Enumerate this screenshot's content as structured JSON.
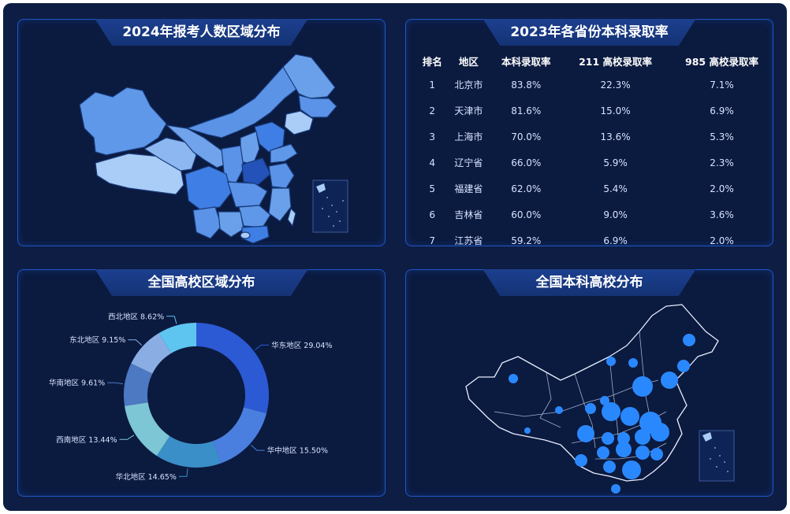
{
  "panels": {
    "map_top": {
      "title": "2024年报考人数区域分布"
    },
    "table": {
      "title": "2023年各省份本科录取率"
    },
    "donut": {
      "title": "全国高校区域分布"
    },
    "map_bottom": {
      "title": "全国本科高校分布"
    }
  },
  "table": {
    "headers": [
      "排名",
      "地区",
      "本科录取率",
      "211 高校录取率",
      "985 高校录取率"
    ],
    "rows": [
      {
        "rank": "1",
        "region": "北京市",
        "bachelor": "83.8%",
        "r211": "22.3%",
        "r985": "7.1%"
      },
      {
        "rank": "2",
        "region": "天津市",
        "bachelor": "81.6%",
        "r211": "15.0%",
        "r985": "6.9%"
      },
      {
        "rank": "3",
        "region": "上海市",
        "bachelor": "70.0%",
        "r211": "13.6%",
        "r985": "5.3%"
      },
      {
        "rank": "4",
        "region": "辽宁省",
        "bachelor": "66.0%",
        "r211": "5.9%",
        "r985": "2.3%"
      },
      {
        "rank": "5",
        "region": "福建省",
        "bachelor": "62.0%",
        "r211": "5.4%",
        "r985": "2.0%"
      },
      {
        "rank": "6",
        "region": "吉林省",
        "bachelor": "60.0%",
        "r211": "9.0%",
        "r985": "3.6%"
      },
      {
        "rank": "7",
        "region": "江苏省",
        "bachelor": "59.2%",
        "r211": "6.9%",
        "r985": "2.0%"
      }
    ]
  },
  "chart_data": {
    "type": "pie",
    "title": "全国高校区域分布",
    "slices": [
      {
        "name": "华东地区",
        "value": 29.04,
        "label": "华东地区 29.04%",
        "color": "#2c59d4"
      },
      {
        "name": "华中地区",
        "value": 15.5,
        "label": "华中地区 15.50%",
        "color": "#4a7fe0"
      },
      {
        "name": "华北地区",
        "value": 14.65,
        "label": "华北地区 14.65%",
        "color": "#3a8fc8"
      },
      {
        "name": "西南地区",
        "value": 13.44,
        "label": "西南地区 13.44%",
        "color": "#7cc6d6"
      },
      {
        "name": "华南地区",
        "value": 9.61,
        "label": "华南地区 9.61%",
        "color": "#4d78c2"
      },
      {
        "name": "东北地区",
        "value": 9.15,
        "label": "东北地区 9.15%",
        "color": "#8aaee4"
      },
      {
        "name": "西北地区",
        "value": 8.62,
        "label": "西北地区 8.62%",
        "color": "#5ec4f0"
      }
    ]
  },
  "colors": {
    "background": "#0d1d44",
    "panel": "#0b1a3f",
    "border": "#1f57c6",
    "map_fill": "#4f8ee8",
    "bubble": "#2a88ff"
  }
}
